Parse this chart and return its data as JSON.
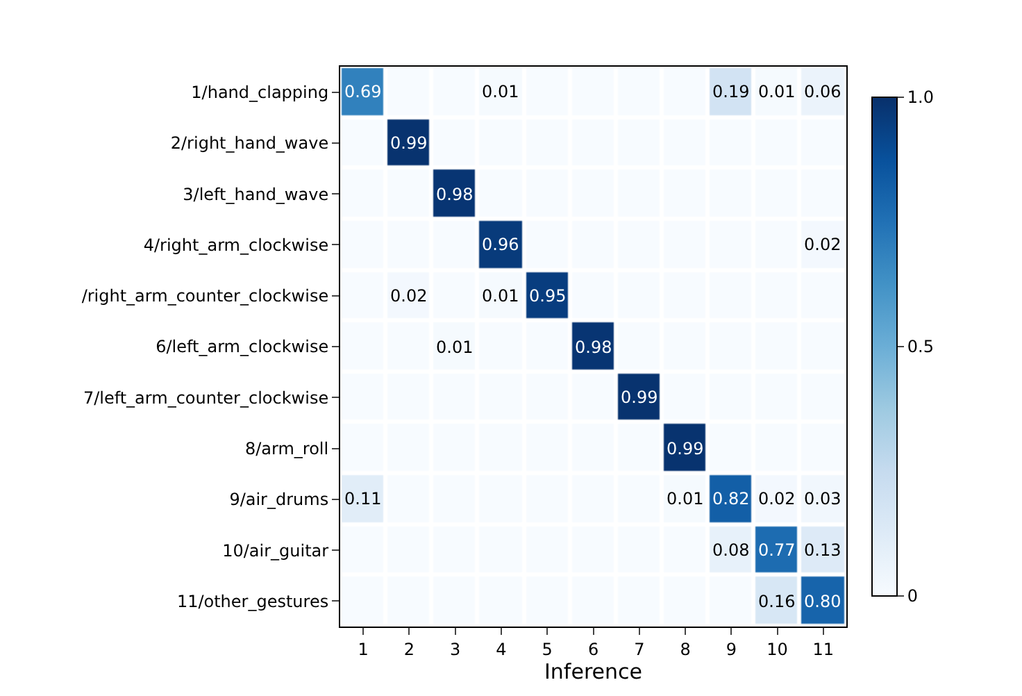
{
  "chart_data": {
    "type": "heatmap",
    "xlabel": "Inference",
    "categories": [
      "1",
      "2",
      "3",
      "4",
      "5",
      "6",
      "7",
      "8",
      "9",
      "10",
      "11"
    ],
    "y_categories": [
      "1/hand_clapping",
      "2/right_hand_wave",
      "3/left_hand_wave",
      "4/right_arm_clockwise",
      "/right_arm_counter_clockwise",
      "6/left_arm_clockwise",
      "7/left_arm_counter_clockwise",
      "8/arm_roll",
      "9/air_drums",
      "10/air_guitar",
      "11/other_gestures"
    ],
    "cells": [
      [
        0.69,
        0,
        0,
        0.01,
        0,
        0,
        0,
        0,
        0.19,
        0.01,
        0.06
      ],
      [
        0,
        0.99,
        0,
        0,
        0,
        0,
        0,
        0,
        0,
        0,
        0
      ],
      [
        0,
        0,
        0.98,
        0,
        0,
        0,
        0,
        0,
        0,
        0,
        0
      ],
      [
        0,
        0,
        0,
        0.96,
        0,
        0,
        0,
        0,
        0,
        0,
        0.02
      ],
      [
        0,
        0.02,
        0,
        0.01,
        0.95,
        0,
        0,
        0,
        0,
        0,
        0
      ],
      [
        0,
        0,
        0.01,
        0,
        0,
        0.98,
        0,
        0,
        0,
        0,
        0
      ],
      [
        0,
        0,
        0,
        0,
        0,
        0,
        0.99,
        0,
        0,
        0,
        0
      ],
      [
        0,
        0,
        0,
        0,
        0,
        0,
        0,
        0.99,
        0,
        0,
        0
      ],
      [
        0.11,
        0,
        0,
        0,
        0,
        0,
        0,
        0.01,
        0.82,
        0.02,
        0.03
      ],
      [
        0,
        0,
        0,
        0,
        0,
        0,
        0,
        0,
        0.08,
        0.77,
        0.13
      ],
      [
        0,
        0,
        0,
        0,
        0,
        0,
        0,
        0,
        0,
        0.16,
        0.8
      ]
    ],
    "cell_labels": [
      [
        "0.69",
        null,
        null,
        "0.01",
        null,
        null,
        null,
        null,
        "0.19",
        "0.01",
        "0.06"
      ],
      [
        null,
        "0.99",
        null,
        null,
        null,
        null,
        null,
        null,
        null,
        null,
        null
      ],
      [
        null,
        null,
        "0.98",
        null,
        null,
        null,
        null,
        null,
        null,
        null,
        null
      ],
      [
        null,
        null,
        null,
        "0.96",
        null,
        null,
        null,
        null,
        null,
        null,
        "0.02"
      ],
      [
        null,
        "0.02",
        null,
        "0.01",
        "0.95",
        null,
        null,
        null,
        null,
        null,
        null
      ],
      [
        null,
        null,
        "0.01",
        null,
        null,
        "0.98",
        null,
        null,
        null,
        null,
        null
      ],
      [
        null,
        null,
        null,
        null,
        null,
        null,
        "0.99",
        null,
        null,
        null,
        null
      ],
      [
        null,
        null,
        null,
        null,
        null,
        null,
        null,
        "0.99",
        null,
        null,
        null
      ],
      [
        "0.11",
        null,
        null,
        null,
        null,
        null,
        null,
        "0.01",
        "0.82",
        "0.02",
        "0.03"
      ],
      [
        null,
        null,
        null,
        null,
        null,
        null,
        null,
        null,
        "0.08",
        "0.77",
        "0.13"
      ],
      [
        null,
        null,
        null,
        null,
        null,
        null,
        null,
        null,
        null,
        "0.16",
        "0.80"
      ]
    ],
    "clim": [
      0,
      1
    ],
    "cticks": [
      0,
      0.5,
      {
        "value": 1,
        "label": "1.0"
      }
    ]
  }
}
